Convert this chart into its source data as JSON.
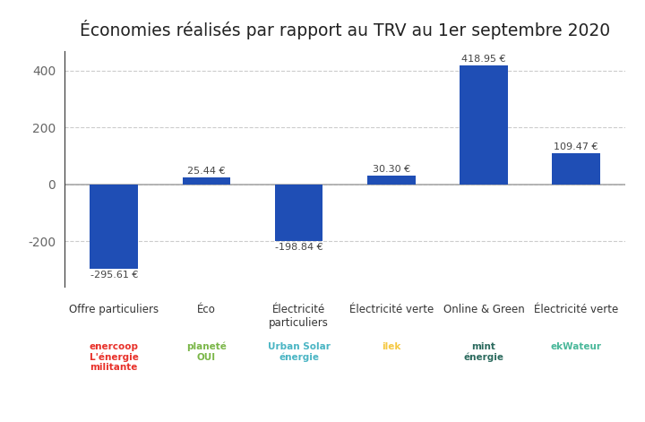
{
  "title": "Économies réalisés par rapport au TRV au 1er septembre 2020",
  "categories": [
    "Offre particuliers",
    "Éco",
    "Électricité\nparticuliers",
    "Électricité verte",
    "Online & Green",
    "Électricité verte"
  ],
  "values": [
    -295.61,
    25.44,
    -198.84,
    30.3,
    418.95,
    109.47
  ],
  "bar_color": "#1f4eb5",
  "background_color": "#ffffff",
  "ylim": [
    -360,
    470
  ],
  "yticks": [
    -200,
    0,
    200,
    400
  ],
  "value_labels": [
    "-295.61 €",
    "25.44 €",
    "-198.84 €",
    "30.30 €",
    "418.95 €",
    "109.47 €"
  ],
  "logo_texts": [
    "enercoop\nL'énergie\nmilitante",
    "planeté\nOUI",
    "Urban Solar\nénergie",
    "ilek",
    "mint\nénergie",
    "ekWateur"
  ],
  "logo_colors": [
    "#e8312a",
    "#7ab648",
    "#4ab5c4",
    "#f5c842",
    "#2d6b5f",
    "#4ab89a"
  ]
}
